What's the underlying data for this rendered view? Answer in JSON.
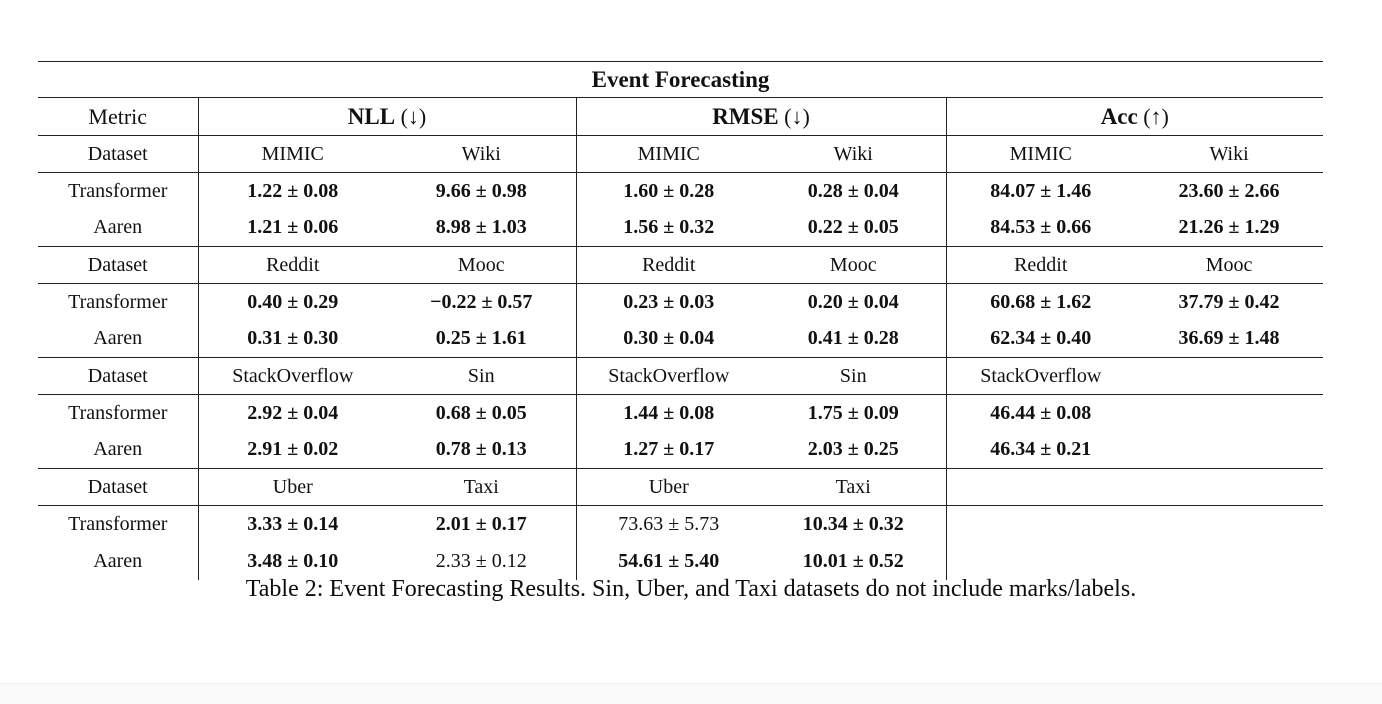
{
  "table": {
    "title": "Event Forecasting",
    "metric_label": "Metric",
    "dataset_label": "Dataset",
    "metrics": [
      {
        "name": "NLL",
        "arrow": "(↓)"
      },
      {
        "name": "RMSE",
        "arrow": "(↓)"
      },
      {
        "name": "Acc",
        "arrow": "(↑)"
      }
    ],
    "groups": [
      {
        "datasets": [
          "MIMIC",
          "Wiki",
          "MIMIC",
          "Wiki",
          "MIMIC",
          "Wiki"
        ],
        "rows": [
          {
            "model": "Transformer",
            "values": [
              "1.22 ± 0.08",
              "9.66 ± 0.98",
              "1.60 ± 0.28",
              "0.28 ± 0.04",
              "84.07 ± 1.46",
              "23.60 ± 2.66"
            ]
          },
          {
            "model": "Aaren",
            "values": [
              "1.21 ± 0.06",
              "8.98 ± 1.03",
              "1.56 ± 0.32",
              "0.22 ± 0.05",
              "84.53 ± 0.66",
              "21.26 ± 1.29"
            ]
          }
        ]
      },
      {
        "datasets": [
          "Reddit",
          "Mooc",
          "Reddit",
          "Mooc",
          "Reddit",
          "Mooc"
        ],
        "rows": [
          {
            "model": "Transformer",
            "values": [
              "0.40 ± 0.29",
              "−0.22 ± 0.57",
              "0.23 ± 0.03",
              "0.20 ± 0.04",
              "60.68 ± 1.62",
              "37.79 ± 0.42"
            ]
          },
          {
            "model": "Aaren",
            "values": [
              "0.31 ± 0.30",
              "0.25 ± 1.61",
              "0.30 ± 0.04",
              "0.41 ± 0.28",
              "62.34 ± 0.40",
              "36.69 ± 1.48"
            ]
          }
        ]
      },
      {
        "datasets": [
          "StackOverflow",
          "Sin",
          "StackOverflow",
          "Sin",
          "StackOverflow",
          ""
        ],
        "rows": [
          {
            "model": "Transformer",
            "values": [
              "2.92 ± 0.04",
              "0.68 ± 0.05",
              "1.44 ± 0.08",
              "1.75 ± 0.09",
              "46.44 ± 0.08",
              ""
            ]
          },
          {
            "model": "Aaren",
            "values": [
              "2.91 ± 0.02",
              "0.78 ± 0.13",
              "1.27 ± 0.17",
              "2.03 ± 0.25",
              "46.34 ± 0.21",
              ""
            ]
          }
        ]
      },
      {
        "datasets": [
          "Uber",
          "Taxi",
          "Uber",
          "Taxi",
          "",
          ""
        ],
        "rows": [
          {
            "model": "Transformer",
            "values": [
              "3.33 ± 0.14",
              "2.01 ± 0.17",
              "73.63 ± 5.73",
              "10.34 ± 0.32",
              "",
              ""
            ]
          },
          {
            "model": "Aaren",
            "values": [
              "3.48 ± 0.10",
              "2.33 ± 0.12",
              "54.61 ± 5.40",
              "10.01 ± 0.52",
              "",
              ""
            ]
          }
        ]
      }
    ]
  },
  "caption": "Table 2: Event Forecasting Results. Sin, Uber, and Taxi datasets do not include marks/labels."
}
